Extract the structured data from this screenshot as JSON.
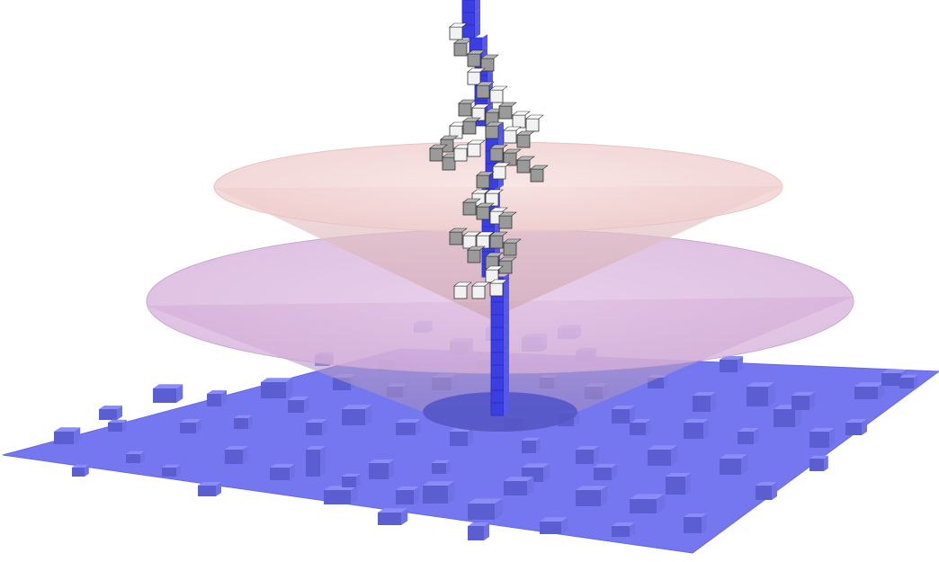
{
  "figure": {
    "palette": {
      "plane": "#7477f0",
      "plane_edge": "#5f62d8",
      "block_top": "#8a8df7",
      "block_front": "#5b5ed1",
      "block_side": "#6f72e6",
      "column_blue": "#3b3ee0",
      "tile_gray": "#9a9a9a",
      "tile_white": "#f2f2f2",
      "cone_upper": "#f4d6d6",
      "cone_lower": "#d9b3da",
      "base_disk": "#5052c8"
    },
    "elements": [
      "surface-plane",
      "surface-blocks",
      "lower-cone",
      "upper-cone",
      "vertical-column",
      "tile-cluster"
    ]
  }
}
